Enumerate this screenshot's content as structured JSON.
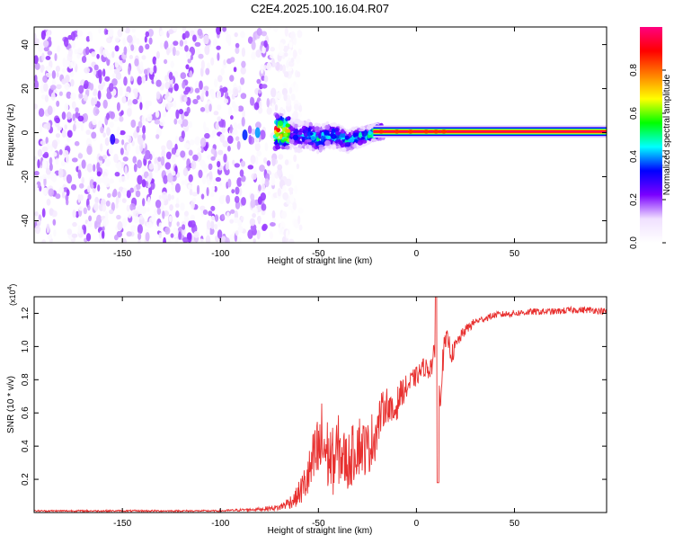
{
  "title": "C2E4.2025.100.16.04.R07",
  "chart_data": [
    {
      "type": "heatmap",
      "xlabel": "Height of straight line (km)",
      "ylabel": "Frequency (Hz)",
      "xlim": [
        -195,
        97
      ],
      "ylim": [
        -50,
        48
      ],
      "xticks": [
        -150,
        -100,
        -50,
        0,
        50
      ],
      "yticks": [
        -40,
        -20,
        0,
        20,
        40
      ],
      "colorbar": {
        "label": "Normalized spectral amplitude",
        "range": [
          0,
          1
        ],
        "ticks": [
          "0.0",
          "0.2",
          "0.4",
          "0.6",
          "0.8"
        ],
        "colormap": [
          "#ffffff",
          "#f0e0ff",
          "#7a00ff",
          "#0000ff",
          "#00ffff",
          "#00ff00",
          "#ffff00",
          "#ff8000",
          "#ff0000",
          "#ff0080"
        ]
      },
      "noise_region_x": [
        -195,
        -65
      ],
      "gap_x": [
        -88,
        -85
      ],
      "signal_ridge": [
        {
          "x": -65,
          "freq": 0,
          "amp": 0.3
        },
        {
          "x": -60,
          "freq": -2,
          "amp": 0.4
        },
        {
          "x": -55,
          "freq": -1,
          "amp": 0.45
        },
        {
          "x": -50,
          "freq": -3,
          "amp": 0.5
        },
        {
          "x": -45,
          "freq": -1,
          "amp": 0.5
        },
        {
          "x": -40,
          "freq": -2,
          "amp": 0.55
        },
        {
          "x": -35,
          "freq": -4,
          "amp": 0.5
        },
        {
          "x": -30,
          "freq": -2,
          "amp": 0.55
        },
        {
          "x": -25,
          "freq": -1,
          "amp": 0.6
        },
        {
          "x": -20,
          "freq": 0.5,
          "amp": 0.8
        },
        {
          "x": 0,
          "freq": 0.5,
          "amp": 0.9
        },
        {
          "x": 20,
          "freq": 0.5,
          "amp": 0.95
        },
        {
          "x": 50,
          "freq": 0.5,
          "amp": 0.98
        },
        {
          "x": 97,
          "freq": 0.5,
          "amp": 1.0
        }
      ]
    },
    {
      "type": "line",
      "xlabel": "Height of straight line (km)",
      "ylabel": "SNR (10 * v/v)",
      "yscale_label": "(x10",
      "yscale_exp": "4",
      "xlim": [
        -195,
        97
      ],
      "ylim": [
        0,
        1.3
      ],
      "xticks": [
        -150,
        -100,
        -50,
        0,
        50
      ],
      "yticks": [
        0.2,
        0.4,
        0.6,
        0.8,
        1.0,
        1.2
      ],
      "color": "#e8302f",
      "series": [
        {
          "x": [
            -195,
            -150,
            -100,
            -80,
            -70,
            -62,
            -58,
            -55,
            -52,
            -50,
            -48,
            -45,
            -42,
            -40,
            -38,
            -35,
            -32,
            -30,
            -28,
            -25,
            -22,
            -20,
            -18,
            -15,
            -12,
            -10,
            -8,
            -5,
            -2,
            0,
            2,
            4,
            6,
            8,
            10,
            12,
            14,
            16,
            18,
            20,
            22,
            25,
            28,
            30,
            35,
            40,
            50,
            60,
            70,
            80,
            90,
            97
          ],
          "y": [
            0.01,
            0.01,
            0.01,
            0.02,
            0.03,
            0.08,
            0.15,
            0.22,
            0.32,
            0.36,
            0.42,
            0.34,
            0.3,
            0.38,
            0.34,
            0.3,
            0.36,
            0.42,
            0.4,
            0.38,
            0.45,
            0.5,
            0.6,
            0.66,
            0.58,
            0.65,
            0.72,
            0.75,
            0.8,
            0.82,
            0.85,
            0.88,
            0.86,
            0.9,
            0.95,
            0.7,
            0.98,
            1.05,
            0.95,
            1.0,
            1.05,
            1.1,
            1.13,
            1.15,
            1.17,
            1.19,
            1.2,
            1.21,
            1.21,
            1.22,
            1.22,
            1.21
          ],
          "spread": [
            0.005,
            0.005,
            0.005,
            0.01,
            0.02,
            0.05,
            0.1,
            0.15,
            0.2,
            0.25,
            0.28,
            0.22,
            0.2,
            0.22,
            0.18,
            0.18,
            0.18,
            0.2,
            0.18,
            0.16,
            0.18,
            0.14,
            0.12,
            0.1,
            0.1,
            0.1,
            0.08,
            0.08,
            0.06,
            0.06,
            0.06,
            0.06,
            0.06,
            0.08,
            0.1,
            0.1,
            0.08,
            0.06,
            0.06,
            0.05,
            0.04,
            0.03,
            0.03,
            0.02,
            0.02,
            0.02,
            0.02,
            0.02,
            0.02,
            0.02,
            0.02,
            0.02
          ]
        }
      ]
    }
  ]
}
